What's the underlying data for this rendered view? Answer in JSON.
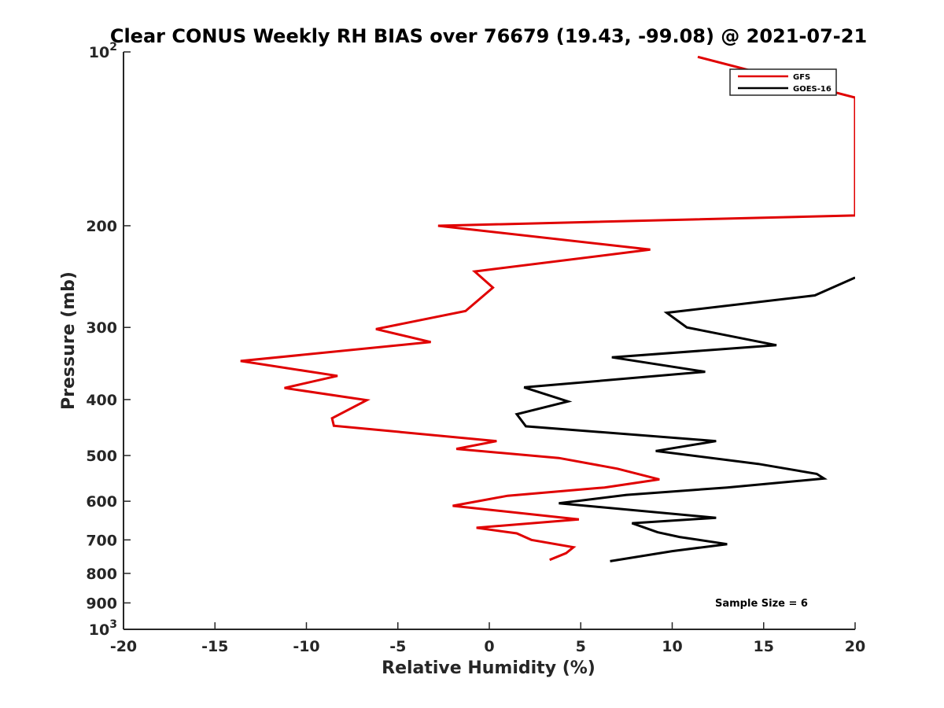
{
  "chart_data": {
    "type": "line",
    "title": "Clear CONUS Weekly RH BIAS over 76679 (19.43, -99.08) @ 2021-07-21",
    "xlabel": "Relative Humidity (%)",
    "ylabel": "Pressure (mb)",
    "xlim": [
      -20,
      20
    ],
    "ylim": [
      100,
      1000
    ],
    "yscale": "log",
    "y_reversed": true,
    "grid": false,
    "legend_position": "top-right",
    "xticks": [
      -20,
      -15,
      -10,
      -5,
      0,
      5,
      10,
      15,
      20
    ],
    "xtick_labels": [
      "-20",
      "-15",
      "-10",
      "-5",
      "0",
      "5",
      "10",
      "15",
      "20"
    ],
    "yticks": [
      {
        "value": 100,
        "base": "10",
        "exp": "2"
      },
      {
        "value": 200,
        "label": "200"
      },
      {
        "value": 300,
        "label": "300"
      },
      {
        "value": 400,
        "label": "400"
      },
      {
        "value": 500,
        "label": "500"
      },
      {
        "value": 600,
        "label": "600"
      },
      {
        "value": 700,
        "label": "700"
      },
      {
        "value": 800,
        "label": "800"
      },
      {
        "value": 900,
        "label": "900"
      },
      {
        "value": 1000,
        "base": "10",
        "exp": "3"
      }
    ],
    "annotation": "Sample Size = 6",
    "series": [
      {
        "name": "GFS",
        "color": "#e00000",
        "x": [
          11.4,
          20.0,
          20.0,
          -2.8,
          8.8,
          -0.8,
          0.2,
          -1.3,
          -6.2,
          -3.2,
          -13.6,
          -8.3,
          -11.2,
          -6.7,
          -8.6,
          -8.5,
          0.4,
          -1.8,
          3.8,
          7.0,
          9.3,
          6.3,
          1.0,
          -2.0,
          4.9,
          -0.7,
          1.5,
          2.3,
          4.6,
          4.2,
          3.3
        ],
        "y": [
          102,
          120,
          192,
          200,
          220,
          240,
          256,
          281,
          302,
          318,
          343,
          364,
          382,
          401,
          431,
          444,
          472,
          487,
          505,
          527,
          550,
          568,
          587,
          611,
          645,
          667,
          682,
          700,
          721,
          738,
          758
        ]
      },
      {
        "name": "GOES-16",
        "color": "#000000",
        "x": [
          20.0,
          17.8,
          9.7,
          10.8,
          15.7,
          6.7,
          11.8,
          1.9,
          4.3,
          1.5,
          2.0,
          12.4,
          9.1,
          14.7,
          17.9,
          18.3,
          13.0,
          7.5,
          3.8,
          12.4,
          7.8,
          9.2,
          10.4,
          13.0,
          10.0,
          6.6
        ],
        "y": [
          246,
          264,
          283,
          300,
          322,
          338,
          358,
          381,
          403,
          424,
          445,
          472,
          491,
          517,
          538,
          548,
          568,
          585,
          605,
          641,
          655,
          679,
          692,
          712,
          732,
          762
        ]
      }
    ]
  }
}
